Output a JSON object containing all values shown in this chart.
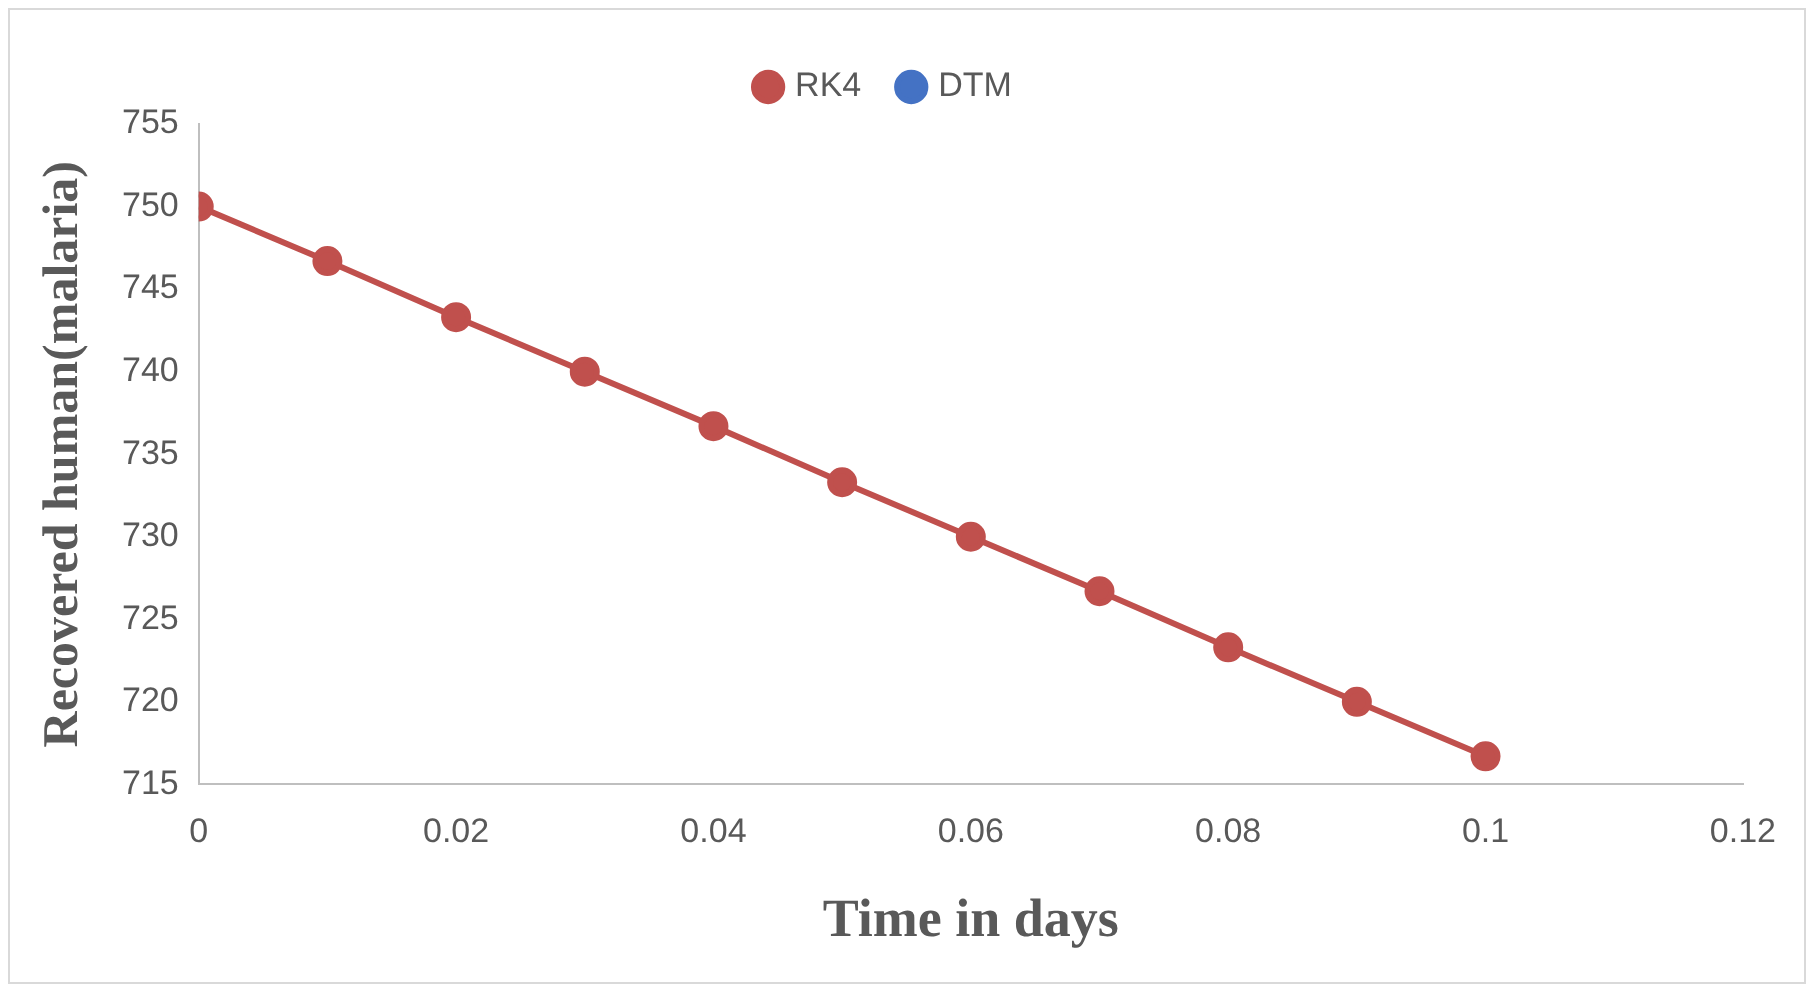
{
  "chart_data": {
    "type": "line",
    "xlabel": "Time in days",
    "ylabel": "Recovered human(malaria)",
    "x": [
      0,
      0.01,
      0.02,
      0.03,
      0.04,
      0.05,
      0.06,
      0.07,
      0.08,
      0.09,
      0.1
    ],
    "series": [
      {
        "name": "DTM",
        "color": "#4472c4",
        "values": [
          null,
          null,
          null,
          null,
          null,
          null,
          null,
          null,
          null,
          null,
          null
        ]
      },
      {
        "name": "RK4",
        "color": "#c0504d",
        "values": [
          750,
          746.7,
          743.3,
          740,
          736.7,
          733.3,
          730,
          726.7,
          723.3,
          720,
          716.7
        ]
      }
    ],
    "xlim": [
      0,
      0.12
    ],
    "xticks": [
      0,
      0.02,
      0.04,
      0.06,
      0.08,
      0.1,
      0.12
    ],
    "ylim": [
      715,
      755
    ],
    "yticks": [
      715,
      720,
      725,
      730,
      735,
      740,
      745,
      750,
      755
    ],
    "grid": false,
    "legend": "top",
    "marker": "circle",
    "line_style": "solid"
  }
}
